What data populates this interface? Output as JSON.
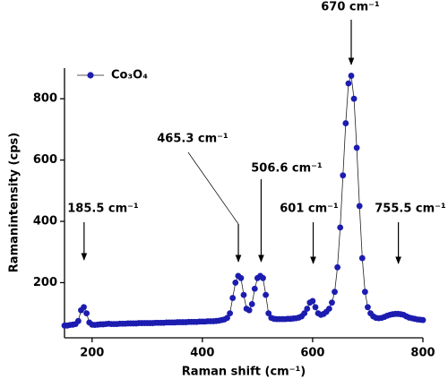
{
  "chart_data": {
    "type": "scatter-line",
    "x_label": "Raman shift (cm⁻¹)",
    "y_label": "Ramanintensity (cps)",
    "xlim": [
      150,
      800
    ],
    "ylim": [
      20,
      900
    ],
    "xticks": [
      200,
      400,
      600,
      800
    ],
    "yticks": [
      200,
      400,
      600,
      800
    ],
    "legend": "top-left",
    "series": [
      {
        "name": "Co₃O₄",
        "color": "#1c1cb0",
        "x": [
          150,
          155,
          160,
          165,
          170,
          175,
          180,
          185,
          190,
          195,
          200,
          205,
          210,
          215,
          220,
          225,
          230,
          235,
          240,
          245,
          250,
          255,
          260,
          265,
          270,
          275,
          280,
          285,
          290,
          295,
          300,
          305,
          310,
          315,
          320,
          325,
          330,
          335,
          340,
          345,
          350,
          355,
          360,
          365,
          370,
          375,
          380,
          385,
          390,
          395,
          400,
          405,
          410,
          415,
          420,
          425,
          430,
          435,
          440,
          445,
          450,
          455,
          460,
          465,
          470,
          475,
          480,
          485,
          490,
          495,
          500,
          505,
          510,
          515,
          520,
          525,
          530,
          535,
          540,
          545,
          550,
          555,
          560,
          565,
          570,
          575,
          580,
          585,
          590,
          595,
          600,
          605,
          610,
          615,
          620,
          625,
          630,
          635,
          640,
          645,
          650,
          655,
          660,
          665,
          670,
          675,
          680,
          685,
          690,
          695,
          700,
          705,
          710,
          715,
          720,
          725,
          730,
          735,
          740,
          745,
          750,
          755,
          760,
          765,
          770,
          775,
          780,
          785,
          790,
          795,
          800
        ],
        "values": [
          60,
          60,
          62,
          63,
          65,
          75,
          110,
          120,
          100,
          70,
          63,
          62,
          63,
          64,
          64,
          65,
          66,
          65,
          65,
          65,
          66,
          66,
          66,
          67,
          67,
          67,
          67,
          68,
          68,
          68,
          68,
          68,
          68,
          69,
          69,
          69,
          69,
          70,
          70,
          70,
          70,
          71,
          71,
          71,
          71,
          72,
          72,
          72,
          72,
          73,
          73,
          73,
          74,
          74,
          74,
          75,
          76,
          78,
          80,
          85,
          100,
          150,
          200,
          222,
          215,
          160,
          115,
          110,
          130,
          180,
          215,
          222,
          215,
          160,
          100,
          85,
          82,
          81,
          81,
          81,
          81,
          82,
          82,
          83,
          84,
          86,
          90,
          100,
          115,
          135,
          140,
          120,
          100,
          95,
          98,
          105,
          115,
          135,
          170,
          250,
          380,
          550,
          720,
          850,
          875,
          800,
          640,
          450,
          280,
          170,
          120,
          100,
          90,
          85,
          84,
          85,
          88,
          92,
          95,
          97,
          98,
          98,
          97,
          95,
          90,
          86,
          84,
          82,
          80,
          79,
          78
        ]
      }
    ],
    "annotations": [
      {
        "text": "185.5 cm⁻¹",
        "x": 185.5
      },
      {
        "text": "465.3 cm⁻¹",
        "x": 465.3
      },
      {
        "text": "506.6 cm⁻¹",
        "x": 506.6
      },
      {
        "text": "601 cm⁻¹",
        "x": 601
      },
      {
        "text": "670 cm⁻¹",
        "x": 670
      },
      {
        "text": "755.5 cm⁻¹",
        "x": 755.5
      }
    ]
  }
}
